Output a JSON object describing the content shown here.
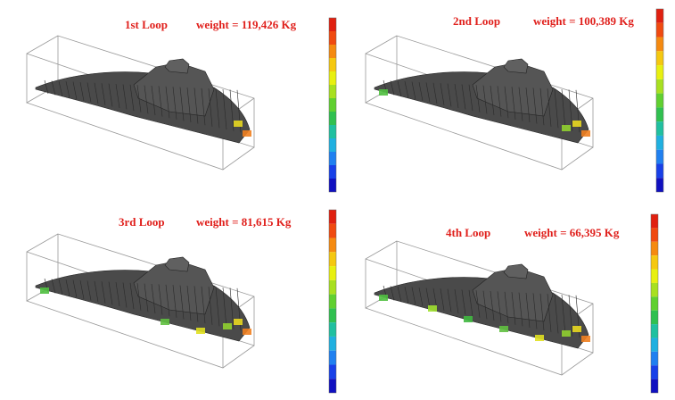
{
  "panels": [
    {
      "title": "1st Loop",
      "weight": "weight = 119,426 Kg"
    },
    {
      "title": "2nd Loop",
      "weight": "weight = 100,389 Kg"
    },
    {
      "title": "3rd Loop",
      "weight": "weight = 81,615 Kg"
    },
    {
      "title": "4th Loop",
      "weight": "weight = 66,395 Kg"
    }
  ]
}
